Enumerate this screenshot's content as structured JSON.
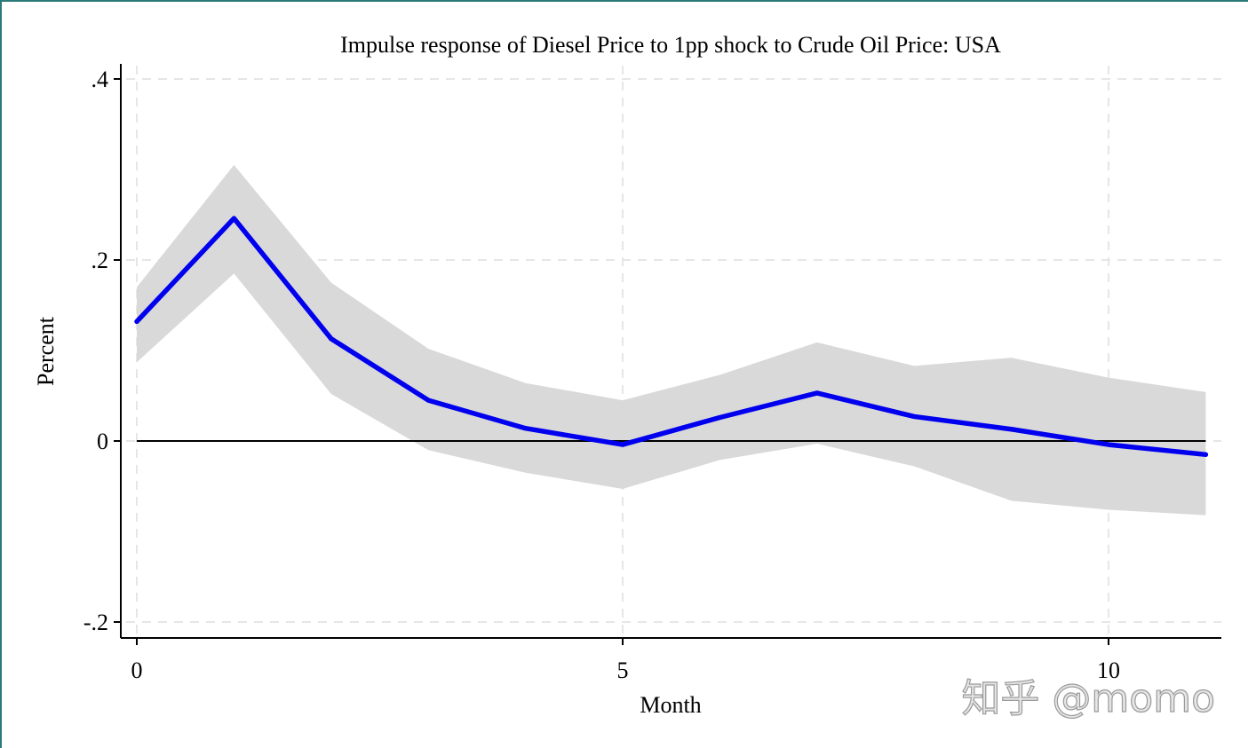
{
  "chart_data": {
    "type": "line",
    "title": "Impulse response of Diesel Price to 1pp shock to Crude Oil Price: USA",
    "xlabel": "Month",
    "ylabel": "Percent",
    "xlim": [
      -0.2,
      11.2
    ],
    "ylim": [
      -0.22,
      0.42
    ],
    "x_ticks": [
      0,
      5,
      10
    ],
    "x_tick_labels": [
      "0",
      "5",
      "10"
    ],
    "y_ticks": [
      -0.2,
      0,
      0.2,
      0.4
    ],
    "y_tick_labels": [
      "-.2",
      "0",
      ".2",
      ".4"
    ],
    "grid": true,
    "zero_line": 0,
    "x": [
      0,
      1,
      2,
      3,
      4,
      5,
      6,
      7,
      8,
      9,
      10,
      11
    ],
    "series": [
      {
        "name": "IRF",
        "color": "#0000ee",
        "values": [
          0.132,
          0.246,
          0.113,
          0.045,
          0.014,
          -0.004,
          0.026,
          0.053,
          0.027,
          0.013,
          -0.004,
          -0.015
        ]
      },
      {
        "name": "Upper band",
        "color": "#d9d9d9",
        "values": [
          0.17,
          0.305,
          0.175,
          0.102,
          0.064,
          0.045,
          0.073,
          0.109,
          0.083,
          0.092,
          0.07,
          0.054
        ]
      },
      {
        "name": "Lower band",
        "color": "#d9d9d9",
        "values": [
          0.087,
          0.185,
          0.052,
          -0.01,
          -0.035,
          -0.053,
          -0.021,
          -0.003,
          -0.028,
          -0.066,
          -0.076,
          -0.082
        ]
      }
    ]
  },
  "watermark": "知乎 @momo"
}
